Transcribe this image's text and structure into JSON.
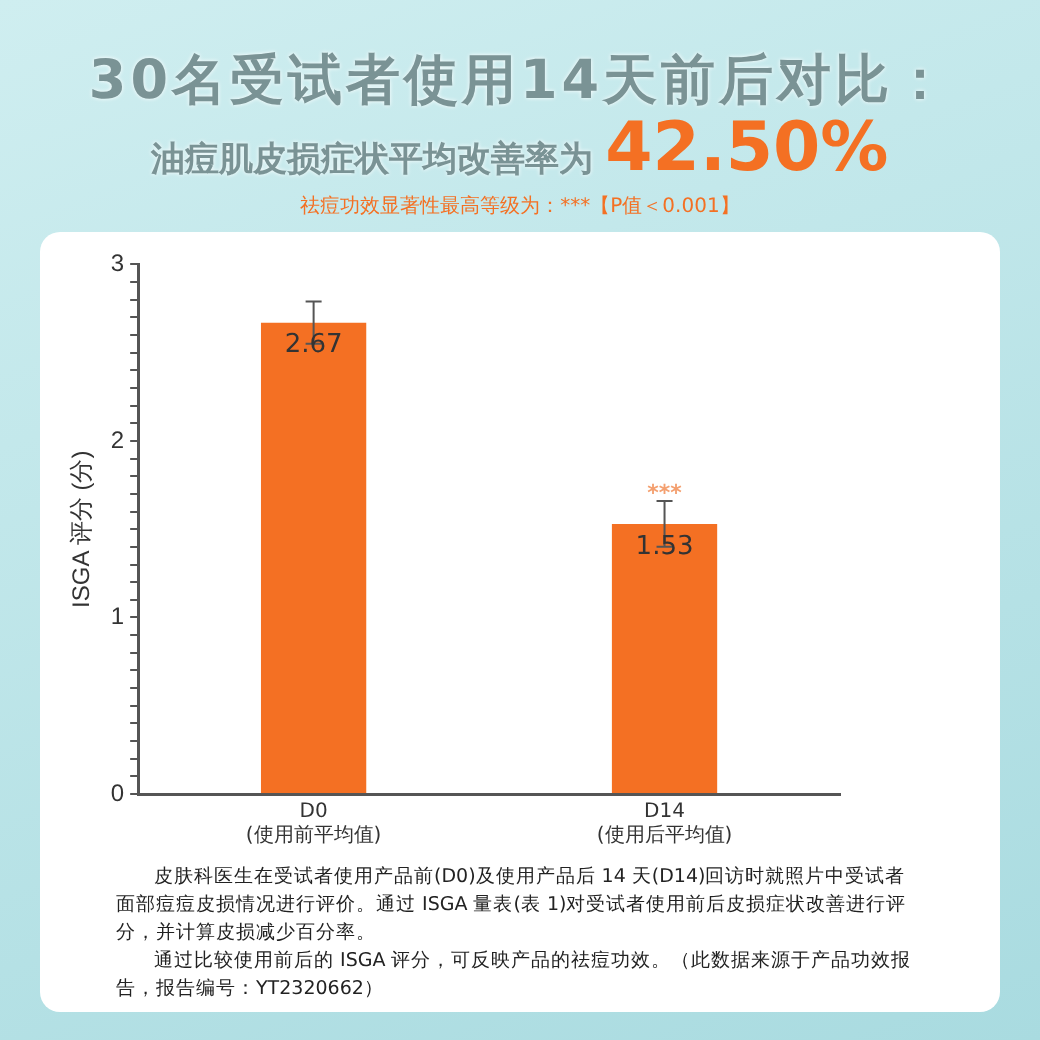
{
  "chart_data": {
    "type": "bar",
    "title": "30名受试者使用14天前后对比：",
    "subtitle": "油痘肌皮损症状平均改善率为42.50%",
    "ylabel": "ISGA 评分 (分)",
    "categories": [
      "D0\n(使用前平均值)",
      "D14\n(使用后平均值)"
    ],
    "values": [
      2.67,
      1.53
    ],
    "errors": [
      0.12,
      0.13
    ],
    "color": "#f47023",
    "data_labels": true,
    "grid": false,
    "legend": false,
    "ylim": [
      0,
      3
    ],
    "yticks": [
      0,
      {
        "value": 0.1,
        "label": null
      },
      {
        "value": 0.2,
        "label": null
      },
      {
        "value": 0.3,
        "label": null
      },
      {
        "value": 0.4,
        "label": null
      },
      {
        "value": 0.5,
        "label": null
      },
      {
        "value": 0.6,
        "label": null
      },
      {
        "value": 0.7,
        "label": null
      },
      {
        "value": 0.8,
        "label": null
      },
      {
        "value": 0.9,
        "label": null
      },
      1,
      {
        "value": 1.1,
        "label": null
      },
      {
        "value": 1.2,
        "label": null
      },
      {
        "value": 1.3,
        "label": null
      },
      {
        "value": 1.4,
        "label": null
      },
      {
        "value": 1.5,
        "label": null
      },
      {
        "value": 1.6,
        "label": null
      },
      {
        "value": 1.7,
        "label": null
      },
      {
        "value": 1.8,
        "label": null
      },
      {
        "value": 1.9,
        "label": null
      },
      2,
      {
        "value": 2.1,
        "label": null
      },
      {
        "value": 2.2,
        "label": null
      },
      {
        "value": 2.3,
        "label": null
      },
      {
        "value": 2.4,
        "label": null
      },
      {
        "value": 2.5,
        "label": null
      },
      {
        "value": 2.6,
        "label": null
      },
      {
        "value": 2.7,
        "label": null
      },
      {
        "value": 2.8,
        "label": null
      },
      {
        "value": 2.9,
        "label": null
      },
      3
    ],
    "annotations": [
      "祛痘功效显著性最高等级为：***【P值＜0.001】",
      {
        "text": "***",
        "x": "D14\n(使用后平均值)",
        "y": 1.66
      },
      "皮肤科医生在受试者使用产品前(D0)及使用产品后 14 天(D14)回访时就照片中受试者面部痘痘皮损情况进行评价。通过 ISGA 量表(表 1)对受试者使用前后皮损症状改善进行评分，并计算皮损减少百分率。",
      "通过比较使用前后的 ISGA 评分，可反映产品的祛痘功效。（此数据来源于产品功效报告，报告编号：YT2320662）"
    ]
  }
}
